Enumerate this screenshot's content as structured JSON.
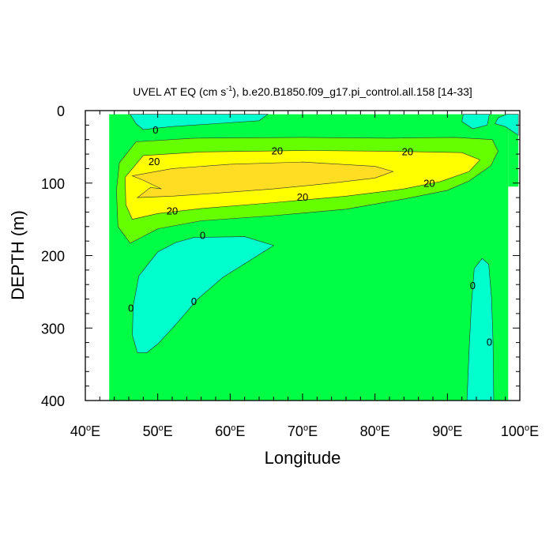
{
  "chart_data": {
    "type": "contour",
    "title": "UVEL AT EQ (cm s",
    "title_sup": "-1",
    "title_rest": "), b.e20.B1850.f09_g17.pi_control.all.158 [14-33]",
    "xlabel": "Longitude",
    "ylabel": "DEPTH (m)",
    "xlim": [
      40,
      100
    ],
    "ylim": [
      400,
      0
    ],
    "x_ticks": [
      {
        "value": 40,
        "label": "40"
      },
      {
        "value": 50,
        "label": "50"
      },
      {
        "value": 60,
        "label": "60"
      },
      {
        "value": 70,
        "label": "70"
      },
      {
        "value": 80,
        "label": "80"
      },
      {
        "value": 90,
        "label": "90"
      },
      {
        "value": 100,
        "label": "100"
      }
    ],
    "x_tick_suffix": "E",
    "y_ticks": [
      {
        "value": 0,
        "label": "0"
      },
      {
        "value": 100,
        "label": "100"
      },
      {
        "value": 200,
        "label": "200"
      },
      {
        "value": 300,
        "label": "300"
      },
      {
        "value": 400,
        "label": "400"
      }
    ],
    "colors": {
      "negative": "#00ffcc",
      "level_0_10": "#00ff44",
      "level_10_20": "#66ff00",
      "level_20_30": "#ffff00",
      "level_30_40": "#ffdd22"
    },
    "regions": [
      {
        "name": "background-0-10",
        "level": "level_0_10",
        "points": [
          [
            43.3,
            5
          ],
          [
            98.4,
            5
          ],
          [
            98.4,
            400
          ],
          [
            43.3,
            400
          ]
        ]
      },
      {
        "name": "land-notch",
        "level": "level_0_10",
        "points": [
          [
            98.4,
            5
          ],
          [
            99.8,
            5
          ],
          [
            99.8,
            105
          ],
          [
            98.4,
            105
          ]
        ]
      },
      {
        "name": "neg-top-west",
        "level": "negative",
        "points": [
          [
            46.2,
            5
          ],
          [
            65.2,
            5
          ],
          [
            64.0,
            14
          ],
          [
            58.0,
            18
          ],
          [
            52.0,
            22
          ],
          [
            48.0,
            26
          ],
          [
            47.0,
            18
          ]
        ]
      },
      {
        "name": "neg-top-east",
        "level": "negative",
        "points": [
          [
            92.2,
            5
          ],
          [
            95.8,
            5
          ],
          [
            95.5,
            20
          ],
          [
            93.5,
            25
          ],
          [
            92.0,
            15
          ]
        ]
      },
      {
        "name": "neg-top-far-east",
        "level": "negative",
        "points": [
          [
            98.2,
            5
          ],
          [
            99.8,
            5
          ],
          [
            99.8,
            34
          ],
          [
            98.0,
            22
          ],
          [
            96.6,
            18
          ],
          [
            97.0,
            10
          ]
        ]
      },
      {
        "name": "neg-west-lens",
        "level": "negative",
        "points": [
          [
            55.0,
            175
          ],
          [
            62.0,
            174
          ],
          [
            66.0,
            186
          ],
          [
            63.0,
            205
          ],
          [
            59.0,
            230
          ],
          [
            55.5,
            260
          ],
          [
            52.5,
            295
          ],
          [
            50.0,
            322
          ],
          [
            48.5,
            334
          ],
          [
            47.2,
            334
          ],
          [
            46.5,
            310
          ],
          [
            46.6,
            270
          ],
          [
            47.4,
            228
          ],
          [
            50.0,
            195
          ],
          [
            52.5,
            182
          ]
        ]
      },
      {
        "name": "neg-east-strip",
        "level": "negative",
        "points": [
          [
            93.7,
            218
          ],
          [
            94.8,
            204
          ],
          [
            95.7,
            212
          ],
          [
            96.1,
            260
          ],
          [
            96.3,
            320
          ],
          [
            96.4,
            400
          ],
          [
            92.7,
            400
          ],
          [
            93.0,
            330
          ],
          [
            93.3,
            270
          ]
        ]
      },
      {
        "name": "core-10",
        "level": "level_10_20",
        "points": [
          [
            44.7,
            72
          ],
          [
            47.0,
            43
          ],
          [
            55.0,
            38
          ],
          [
            70.0,
            37
          ],
          [
            82.0,
            38
          ],
          [
            91.0,
            37
          ],
          [
            96.2,
            40
          ],
          [
            97.0,
            56
          ],
          [
            96.0,
            76
          ],
          [
            93.0,
            97
          ],
          [
            90.0,
            110
          ],
          [
            84.0,
            122
          ],
          [
            76.0,
            136
          ],
          [
            66.0,
            145
          ],
          [
            56.0,
            152
          ],
          [
            50.0,
            163
          ],
          [
            46.2,
            183
          ],
          [
            44.5,
            160
          ],
          [
            44.3,
            110
          ]
        ]
      },
      {
        "name": "core-20",
        "level": "level_20_30",
        "points": [
          [
            45.5,
            92
          ],
          [
            48.0,
            62
          ],
          [
            56.0,
            57
          ],
          [
            70.0,
            55
          ],
          [
            82.0,
            56
          ],
          [
            92.0,
            58
          ],
          [
            94.5,
            68
          ],
          [
            93.0,
            84
          ],
          [
            89.0,
            98
          ],
          [
            84.0,
            108
          ],
          [
            76.0,
            118
          ],
          [
            66.0,
            127
          ],
          [
            56.0,
            135
          ],
          [
            50.0,
            142
          ],
          [
            46.5,
            150
          ],
          [
            45.6,
            130
          ]
        ]
      },
      {
        "name": "core-30",
        "level": "level_30_40",
        "points": [
          [
            46.5,
            90
          ],
          [
            52.0,
            80
          ],
          [
            60.0,
            74
          ],
          [
            70.0,
            71
          ],
          [
            80.0,
            77
          ],
          [
            82.5,
            84
          ],
          [
            80.0,
            93
          ],
          [
            74.0,
            100
          ],
          [
            66.0,
            108
          ],
          [
            58.0,
            114
          ],
          [
            52.0,
            118
          ],
          [
            47.2,
            120
          ],
          [
            49.0,
            106
          ],
          [
            50.5,
            108
          ],
          [
            48.0,
            96
          ]
        ]
      }
    ],
    "contour_labels": [
      {
        "text": "0",
        "x": 49.7,
        "y": 27
      },
      {
        "text": "20",
        "x": 49.5,
        "y": 71
      },
      {
        "text": "20",
        "x": 66.5,
        "y": 56
      },
      {
        "text": "20",
        "x": 84.5,
        "y": 57
      },
      {
        "text": "20",
        "x": 87.5,
        "y": 101
      },
      {
        "text": "20",
        "x": 70.0,
        "y": 120
      },
      {
        "text": "20",
        "x": 52.0,
        "y": 139
      },
      {
        "text": "0",
        "x": 56.2,
        "y": 173
      },
      {
        "text": "0",
        "x": 55.0,
        "y": 264
      },
      {
        "text": "0",
        "x": 46.3,
        "y": 273
      },
      {
        "text": "0",
        "x": 93.5,
        "y": 242
      },
      {
        "text": "0",
        "x": 95.8,
        "y": 320
      }
    ]
  }
}
